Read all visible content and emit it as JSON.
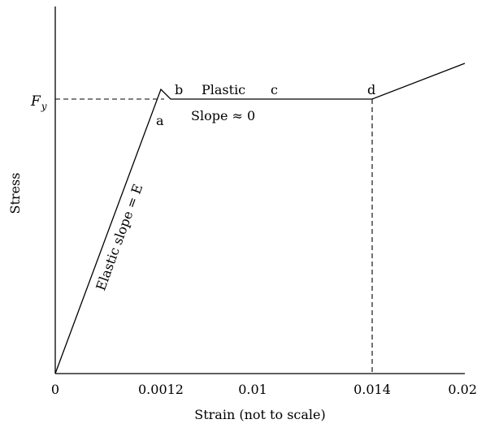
{
  "chart_data": {
    "type": "line",
    "xlabel": "Strain (not to scale)",
    "ylabel": "Stress",
    "x_ticks": [
      "0",
      "0.0012",
      "0.01",
      "0.014",
      "0.02"
    ],
    "yield_label": {
      "main": "F",
      "sub": "y"
    },
    "curve": {
      "points": [
        {
          "x": "0",
          "y": "0"
        },
        {
          "x": "a (0.0012)",
          "y": "above F_y (upper yield)"
        },
        {
          "x": "b",
          "y": "F_y"
        },
        {
          "x": "d (0.014)",
          "y": "F_y"
        },
        {
          "x": "0.02",
          "y": "above F_y (strain hardening)"
        }
      ],
      "elastic_slope": "E",
      "plastic_slope": "≈ 0"
    },
    "point_labels": [
      "a",
      "b",
      "c",
      "d"
    ],
    "annotations": {
      "elastic": "Elastic slope = E",
      "plastic": "Plastic",
      "slope": "Slope ≈ 0"
    },
    "reference_lines": [
      "horizontal dashed at F_y",
      "vertical dashed at 0.014"
    ],
    "grid": false,
    "legend": "none"
  }
}
